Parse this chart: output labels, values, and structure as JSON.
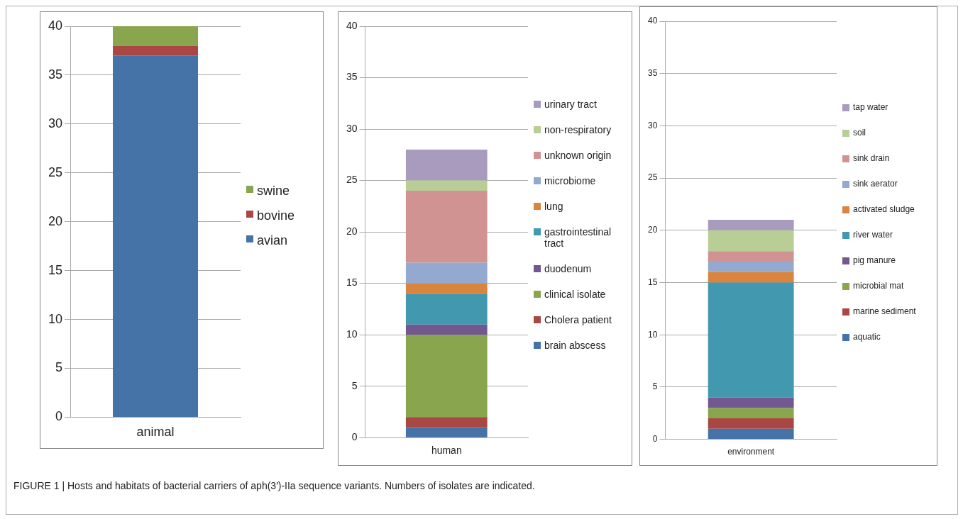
{
  "chart_data": [
    {
      "type": "bar",
      "categories": [
        "animal"
      ],
      "stacked": true,
      "grid": "y",
      "legend": "right",
      "ylim": [
        0,
        40
      ],
      "yticks": [
        0,
        5,
        10,
        15,
        20,
        25,
        30,
        35,
        40
      ],
      "annotations": [
        "FIGURE 1 | Hosts and habitats of bacterial carriers of aph(3′)-IIa sequence variants. Numbers of isolates are indicated."
      ],
      "series": [
        {
          "name": "avian",
          "color": "#4572a7",
          "values": [
            37
          ]
        },
        {
          "name": "bovine",
          "color": "#aa4643",
          "values": [
            1
          ]
        },
        {
          "name": "swine",
          "color": "#89a54e",
          "values": [
            2
          ]
        }
      ]
    },
    {
      "type": "bar",
      "categories": [
        "human"
      ],
      "stacked": true,
      "grid": "y",
      "legend": "right",
      "ylim": [
        0,
        40
      ],
      "yticks": [
        0,
        5,
        10,
        15,
        20,
        25,
        30,
        35,
        40
      ],
      "series": [
        {
          "name": "brain abscess",
          "color": "#4572a7",
          "values": [
            1
          ]
        },
        {
          "name": "Cholera patient",
          "color": "#aa4643",
          "values": [
            1
          ]
        },
        {
          "name": "clinical isolate",
          "color": "#89a54e",
          "values": [
            8
          ]
        },
        {
          "name": "duodenum",
          "color": "#71588f",
          "values": [
            1
          ]
        },
        {
          "name": "gastrointestinal tract",
          "color": "#4198af",
          "values": [
            3
          ]
        },
        {
          "name": "lung",
          "color": "#db843d",
          "values": [
            1
          ]
        },
        {
          "name": "microbiome",
          "color": "#93a9cf",
          "values": [
            2
          ]
        },
        {
          "name": "unknown origin",
          "color": "#d19392",
          "values": [
            7
          ]
        },
        {
          "name": "non-respiratory",
          "color": "#b9cd96",
          "values": [
            1
          ]
        },
        {
          "name": "urinary tract",
          "color": "#a99bbd",
          "values": [
            3
          ]
        }
      ]
    },
    {
      "type": "bar",
      "categories": [
        "environment"
      ],
      "stacked": true,
      "grid": "y",
      "legend": "right",
      "ylim": [
        0,
        40
      ],
      "yticks": [
        0,
        5,
        10,
        15,
        20,
        25,
        30,
        35,
        40
      ],
      "series": [
        {
          "name": "aquatic",
          "color": "#4572a7",
          "values": [
            1
          ]
        },
        {
          "name": "marine sediment",
          "color": "#aa4643",
          "values": [
            1
          ]
        },
        {
          "name": "microbial mat",
          "color": "#89a54e",
          "values": [
            1
          ]
        },
        {
          "name": "pig manure",
          "color": "#71588f",
          "values": [
            1
          ]
        },
        {
          "name": "river water",
          "color": "#4198af",
          "values": [
            11
          ]
        },
        {
          "name": "activated sludge",
          "color": "#db843d",
          "values": [
            1
          ]
        },
        {
          "name": "sink aerator",
          "color": "#93a9cf",
          "values": [
            1
          ]
        },
        {
          "name": "sink drain",
          "color": "#d19392",
          "values": [
            1
          ]
        },
        {
          "name": "soil",
          "color": "#b9cd96",
          "values": [
            2
          ]
        },
        {
          "name": "tap water",
          "color": "#a99bbd",
          "values": [
            1
          ]
        }
      ]
    }
  ]
}
